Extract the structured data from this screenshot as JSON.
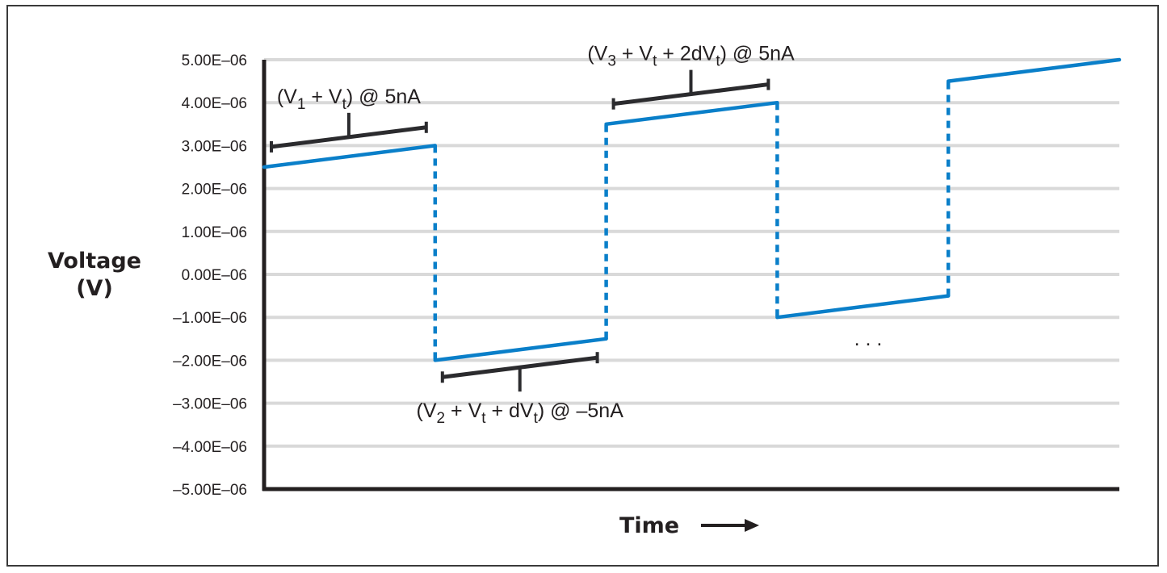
{
  "chart_data": {
    "type": "line",
    "xlabel": "Time",
    "ylabel": [
      "Voltage",
      "(V)"
    ],
    "ylim": [
      -5e-06,
      5e-06
    ],
    "yticks": [
      "5.00E–06",
      "4.00E–06",
      "3.00E–06",
      "2.00E–06",
      "1.00E–06",
      "0.00E–06",
      "–1.00E–06",
      "–2.00E–06",
      "–3.00E–06",
      "–4.00E–06",
      "–5.00E–06"
    ],
    "ytick_values": [
      5e-06,
      4e-06,
      3e-06,
      2e-06,
      1e-06,
      0,
      -1e-06,
      -2e-06,
      -3e-06,
      -4e-06,
      -5e-06
    ],
    "grid": true,
    "line_color": "#0a7fc9",
    "segments": [
      {
        "x": [
          0,
          1
        ],
        "y": [
          2.5e-06,
          3e-06
        ]
      },
      {
        "x": [
          1,
          2
        ],
        "y": [
          -2e-06,
          -1.5e-06
        ]
      },
      {
        "x": [
          2,
          3
        ],
        "y": [
          3.5e-06,
          4e-06
        ]
      },
      {
        "x": [
          3,
          4
        ],
        "y": [
          -1e-06,
          -5e-07
        ]
      },
      {
        "x": [
          4,
          5
        ],
        "y": [
          4.5e-06,
          5e-06
        ]
      }
    ],
    "annotations": [
      {
        "segment": 0,
        "side": "above",
        "parts": [
          [
            "(V",
            ""
          ],
          [
            "1",
            "sub"
          ],
          [
            " + V",
            ""
          ],
          [
            "t",
            "sub"
          ],
          [
            ") @ 5nA",
            ""
          ]
        ]
      },
      {
        "segment": 1,
        "side": "below",
        "parts": [
          [
            "(V",
            ""
          ],
          [
            "2",
            "sub"
          ],
          [
            " + V",
            ""
          ],
          [
            "t",
            "sub"
          ],
          [
            " + dV",
            ""
          ],
          [
            "t",
            "sub"
          ],
          [
            ") @ –5nA",
            ""
          ]
        ]
      },
      {
        "segment": 2,
        "side": "above",
        "parts": [
          [
            "(V",
            ""
          ],
          [
            "3",
            "sub"
          ],
          [
            " + V",
            ""
          ],
          [
            "t",
            "sub"
          ],
          [
            " + 2dV",
            ""
          ],
          [
            "t",
            "sub"
          ],
          [
            ") @ 5nA",
            ""
          ]
        ]
      }
    ],
    "ellipsis": ". . .",
    "time_arrow": "right-arrow-icon"
  }
}
